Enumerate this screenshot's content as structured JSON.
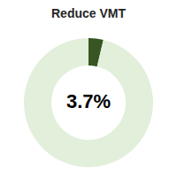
{
  "chart_data": {
    "type": "pie",
    "title": "Reduce VMT",
    "values": [
      3.7,
      96.3
    ],
    "value_labels": [
      "3.7%",
      null
    ],
    "colors": [
      "#375623",
      "#e2efda"
    ],
    "data_labels": true
  }
}
